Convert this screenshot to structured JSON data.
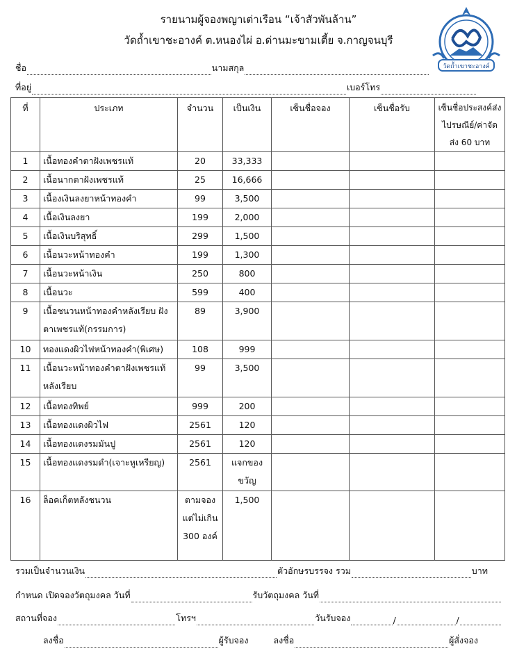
{
  "header": {
    "title": "รายนามผู้จองพญาเต่าเรือน “เจ้าสัวพันล้าน”",
    "subtitle": "วัดถ้ำเขาชะอางค์  ต.หนองไผ่  อ.ด่านมะขามเตี้ย  จ.กาญจนบุรี",
    "logo_text": "วัดถ้ำเขาชะอางค์"
  },
  "form": {
    "name_label": "ชื่อ",
    "surname_label": "นามสกุล",
    "address_label": "ที่อยู่",
    "phone_label": "เบอร์โทร"
  },
  "table": {
    "headers": [
      "ที่",
      "ประเภท",
      "จำนวน",
      "เป็นเงิน",
      "เซ็นชื่อจอง",
      "เซ็นชื่อรับ",
      "เซ็นชื่อประสงค์ส่งไปรษณีย์/ค่าจัดส่ง 60 บาท"
    ],
    "rows": [
      {
        "no": "1",
        "type": "เนื้อทองคำตาฝังเพชรแท้",
        "qty": "20",
        "price": "33,333"
      },
      {
        "no": "2",
        "type": "เนื้อนากตาฝังเพชรแท้",
        "qty": "25",
        "price": "16,666"
      },
      {
        "no": "3",
        "type": "เนื้องเงินลงยาหน้าทองคำ",
        "qty": "99",
        "price": "3,500"
      },
      {
        "no": "4",
        "type": "เนื้อเงินลงยา",
        "qty": "199",
        "price": "2,000"
      },
      {
        "no": "5",
        "type": "เนื้อเงินบริสุทธิ์",
        "qty": "299",
        "price": "1,500"
      },
      {
        "no": "6",
        "type": "เนื้อนวะหน้าทองคำ",
        "qty": "199",
        "price": "1,300"
      },
      {
        "no": "7",
        "type": "เนื้อนวะหน้าเงิน",
        "qty": "250",
        "price": "800"
      },
      {
        "no": "8",
        "type": "เนื้อนวะ",
        "qty": "599",
        "price": "400"
      },
      {
        "no": "9",
        "type": "เนื้อชนวนหน้าทองคำหลังเรียบ ฝังตาเพชรแท้(กรรมการ)",
        "qty": "89",
        "price": "3,900"
      },
      {
        "no": "10",
        "type": "ทองแดงผิวไฟหน้าทองคำ(พิเศษ)",
        "qty": "108",
        "price": "999"
      },
      {
        "no": "11",
        "type": "เนื้อนวะหน้าทองคำตาฝังเพชรแท้ หลังเรียบ",
        "qty": "99",
        "price": "3,500"
      },
      {
        "no": "12",
        "type": "เนื้อทองทิพย์",
        "qty": "999",
        "price": "200"
      },
      {
        "no": "13",
        "type": "เนื้อทองแดงผิวไฟ",
        "qty": "2561",
        "price": "120"
      },
      {
        "no": "14",
        "type": "เนื้อทองแดงรมมันปู",
        "qty": "2561",
        "price": "120"
      },
      {
        "no": "15",
        "type": "เนื้อทองแดงรมดำ(เจาะหูเหรียญ)",
        "qty": "2561",
        "price": "แจกของขวัญ"
      },
      {
        "no": "16",
        "type": "ล็อคเก็ตหลังชนวน",
        "qty": "ตามจองแต่ไม่เกิน 300 องค์",
        "price": "1,500"
      }
    ]
  },
  "footer": {
    "total_label": "รวมเป็นจำนวนเงิน",
    "text_label": "ตัวอักษรบรรจง รวม",
    "baht": "บาท",
    "open_label": "กำหนด เปิดจองวัตถุมงคล  วันที่",
    "receive_label": "รับวัตถุมงคล  วันที่",
    "place_label": "สถานที่จอง",
    "tel_label": "โทรฯ",
    "date_label": "วันรับจอง",
    "slash": "/",
    "sign_label": "ลงชื่อ",
    "receiver": "ผู้รับจอง",
    "orderer": "ผู้สั่งจอง"
  }
}
